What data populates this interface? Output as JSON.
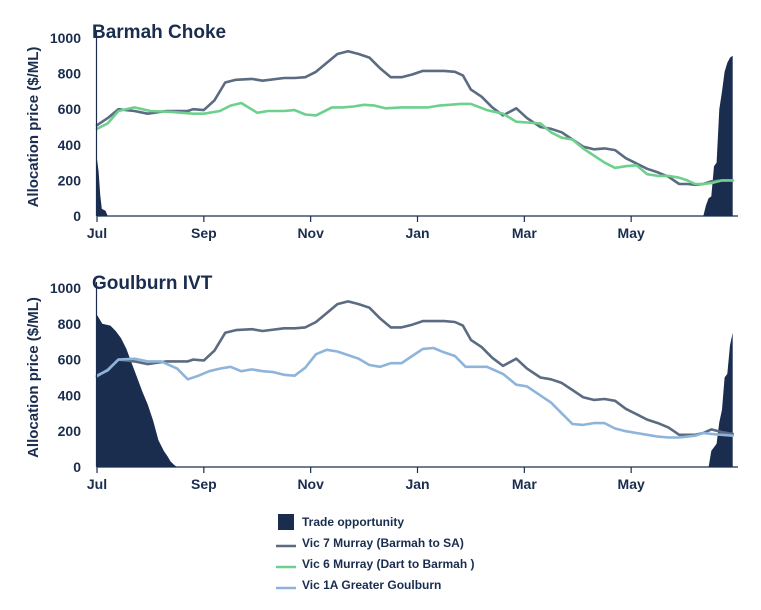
{
  "chart_data": [
    {
      "type": "line",
      "title": "Barmah Choke",
      "ylabel": "Allocation price ($/ML)",
      "xlabel": "",
      "ylim": [
        0,
        1000
      ],
      "yticks": [
        0,
        200,
        400,
        600,
        800,
        1000
      ],
      "xlim": [
        0,
        12
      ],
      "xticks": [
        {
          "label": "Jul",
          "x": 0
        },
        {
          "label": "Sep",
          "x": 2
        },
        {
          "label": "Nov",
          "x": 4
        },
        {
          "label": "Jan",
          "x": 6
        },
        {
          "label": "Mar",
          "x": 8
        },
        {
          "label": "May",
          "x": 10
        }
      ],
      "grid": false,
      "trade_opportunity": [
        {
          "x": 0.0,
          "y": 320
        },
        {
          "x": 0.03,
          "y": 250
        },
        {
          "x": 0.06,
          "y": 120
        },
        {
          "x": 0.09,
          "y": 40
        },
        {
          "x": 0.16,
          "y": 30
        },
        {
          "x": 0.2,
          "y": 0
        },
        {
          "x": 11.35,
          "y": 0
        },
        {
          "x": 11.4,
          "y": 60
        },
        {
          "x": 11.45,
          "y": 100
        },
        {
          "x": 11.5,
          "y": 110
        },
        {
          "x": 11.55,
          "y": 280
        },
        {
          "x": 11.6,
          "y": 300
        },
        {
          "x": 11.65,
          "y": 600
        },
        {
          "x": 11.7,
          "y": 700
        },
        {
          "x": 11.75,
          "y": 810
        },
        {
          "x": 11.8,
          "y": 860
        },
        {
          "x": 11.85,
          "y": 890
        },
        {
          "x": 11.9,
          "y": 900
        }
      ],
      "series": [
        {
          "name": "Vic 7 Murray (Barmah to SA)",
          "color": "#5a6b82",
          "x": [
            0,
            0.2,
            0.4,
            0.7,
            0.95,
            1.3,
            1.7,
            1.8,
            2.0,
            2.2,
            2.4,
            2.6,
            2.9,
            3.1,
            3.5,
            3.7,
            3.9,
            4.1,
            4.3,
            4.5,
            4.7,
            4.9,
            5.1,
            5.3,
            5.5,
            5.7,
            5.9,
            6.1,
            6.3,
            6.5,
            6.7,
            6.85,
            7.0,
            7.2,
            7.4,
            7.6,
            7.85,
            8.05,
            8.3,
            8.5,
            8.7,
            8.9,
            9.1,
            9.3,
            9.5,
            9.7,
            9.9,
            10.1,
            10.3,
            10.5,
            10.7,
            10.9,
            11.05,
            11.2,
            11.35,
            11.5,
            11.7,
            11.9
          ],
          "y": [
            510,
            550,
            600,
            590,
            575,
            590,
            590,
            600,
            595,
            650,
            750,
            765,
            770,
            760,
            775,
            775,
            780,
            810,
            860,
            910,
            925,
            910,
            890,
            830,
            780,
            780,
            795,
            815,
            815,
            815,
            810,
            790,
            710,
            670,
            610,
            565,
            605,
            550,
            500,
            490,
            470,
            430,
            390,
            375,
            380,
            370,
            325,
            295,
            265,
            245,
            220,
            180,
            180,
            175,
            180,
            195,
            200,
            200
          ]
        },
        {
          "name": "Vic 6 Murray (Dart to Barmah )",
          "color": "#6dd08c",
          "x": [
            0,
            0.2,
            0.4,
            0.7,
            1.0,
            1.4,
            1.8,
            2.0,
            2.3,
            2.5,
            2.7,
            3.0,
            3.2,
            3.5,
            3.7,
            3.9,
            4.1,
            4.4,
            4.6,
            4.8,
            5.0,
            5.2,
            5.4,
            5.7,
            6.0,
            6.2,
            6.4,
            6.6,
            6.8,
            7.0,
            7.3,
            7.6,
            7.85,
            8.05,
            8.3,
            8.5,
            8.7,
            8.9,
            9.1,
            9.3,
            9.5,
            9.7,
            9.9,
            10.1,
            10.3,
            10.5,
            10.7,
            10.9,
            11.05,
            11.2,
            11.35,
            11.5,
            11.7,
            11.9
          ],
          "y": [
            490,
            520,
            590,
            610,
            590,
            585,
            575,
            575,
            590,
            620,
            635,
            580,
            590,
            590,
            595,
            570,
            565,
            610,
            610,
            615,
            625,
            620,
            605,
            610,
            610,
            610,
            620,
            625,
            630,
            630,
            595,
            575,
            530,
            525,
            520,
            470,
            440,
            430,
            380,
            340,
            300,
            270,
            280,
            285,
            235,
            225,
            225,
            215,
            200,
            180,
            180,
            185,
            200,
            200
          ]
        }
      ]
    },
    {
      "type": "line",
      "title": "Goulburn IVT",
      "ylabel": "Allocation price ($/ML)",
      "xlabel": "",
      "ylim": [
        0,
        1000
      ],
      "yticks": [
        0,
        200,
        400,
        600,
        800,
        1000
      ],
      "xlim": [
        0,
        12
      ],
      "xticks": [
        {
          "label": "Jul",
          "x": 0
        },
        {
          "label": "Sep",
          "x": 2
        },
        {
          "label": "Nov",
          "x": 4
        },
        {
          "label": "Jan",
          "x": 6
        },
        {
          "label": "Mar",
          "x": 8
        },
        {
          "label": "May",
          "x": 10
        }
      ],
      "grid": false,
      "trade_opportunity": [
        {
          "x": 0.0,
          "y": 850
        },
        {
          "x": 0.1,
          "y": 800
        },
        {
          "x": 0.25,
          "y": 790
        },
        {
          "x": 0.35,
          "y": 760
        },
        {
          "x": 0.45,
          "y": 720
        },
        {
          "x": 0.55,
          "y": 660
        },
        {
          "x": 0.65,
          "y": 580
        },
        {
          "x": 0.75,
          "y": 500
        },
        {
          "x": 0.85,
          "y": 420
        },
        {
          "x": 0.95,
          "y": 350
        },
        {
          "x": 1.05,
          "y": 260
        },
        {
          "x": 1.15,
          "y": 150
        },
        {
          "x": 1.25,
          "y": 90
        },
        {
          "x": 1.32,
          "y": 60
        },
        {
          "x": 1.38,
          "y": 30
        },
        {
          "x": 1.45,
          "y": 10
        },
        {
          "x": 1.5,
          "y": 0
        },
        {
          "x": 11.45,
          "y": 0
        },
        {
          "x": 11.5,
          "y": 90
        },
        {
          "x": 11.55,
          "y": 110
        },
        {
          "x": 11.6,
          "y": 130
        },
        {
          "x": 11.65,
          "y": 250
        },
        {
          "x": 11.7,
          "y": 320
        },
        {
          "x": 11.75,
          "y": 500
        },
        {
          "x": 11.8,
          "y": 520
        },
        {
          "x": 11.85,
          "y": 680
        },
        {
          "x": 11.9,
          "y": 750
        }
      ],
      "series": [
        {
          "name": "Vic 7 Murray (Barmah to SA)",
          "color": "#5a6b82",
          "x": [
            0,
            0.2,
            0.4,
            0.7,
            0.95,
            1.3,
            1.7,
            1.8,
            2.0,
            2.2,
            2.4,
            2.6,
            2.9,
            3.1,
            3.5,
            3.7,
            3.9,
            4.1,
            4.3,
            4.5,
            4.7,
            4.9,
            5.1,
            5.3,
            5.5,
            5.7,
            5.9,
            6.1,
            6.3,
            6.5,
            6.7,
            6.85,
            7.0,
            7.2,
            7.4,
            7.6,
            7.85,
            8.05,
            8.3,
            8.5,
            8.7,
            8.9,
            9.1,
            9.3,
            9.5,
            9.7,
            9.9,
            10.1,
            10.3,
            10.5,
            10.7,
            10.9,
            11.05,
            11.2,
            11.35,
            11.5,
            11.7,
            11.9
          ],
          "y": [
            505,
            545,
            600,
            590,
            575,
            590,
            590,
            600,
            595,
            650,
            750,
            765,
            770,
            760,
            775,
            775,
            780,
            810,
            860,
            910,
            925,
            910,
            890,
            830,
            780,
            780,
            795,
            815,
            815,
            815,
            810,
            790,
            710,
            670,
            610,
            565,
            605,
            550,
            500,
            490,
            470,
            430,
            390,
            375,
            380,
            370,
            325,
            295,
            265,
            245,
            220,
            180,
            180,
            180,
            190,
            210,
            195,
            185
          ]
        },
        {
          "name": "Vic 1A Greater Goulburn",
          "color": "#8fb4dc",
          "x": [
            0,
            0.2,
            0.4,
            0.7,
            0.95,
            1.2,
            1.5,
            1.7,
            1.9,
            2.1,
            2.3,
            2.5,
            2.7,
            2.9,
            3.1,
            3.3,
            3.5,
            3.7,
            3.9,
            4.1,
            4.3,
            4.5,
            4.7,
            4.9,
            5.1,
            5.3,
            5.5,
            5.7,
            5.9,
            6.1,
            6.3,
            6.5,
            6.7,
            6.9,
            7.1,
            7.3,
            7.6,
            7.85,
            8.05,
            8.3,
            8.5,
            8.7,
            8.9,
            9.1,
            9.3,
            9.5,
            9.7,
            9.9,
            10.1,
            10.3,
            10.5,
            10.7,
            10.9,
            11.05,
            11.2,
            11.35,
            11.5,
            11.7,
            11.9
          ],
          "y": [
            510,
            540,
            600,
            605,
            590,
            590,
            550,
            490,
            510,
            535,
            550,
            560,
            535,
            545,
            535,
            530,
            515,
            510,
            555,
            630,
            655,
            645,
            625,
            605,
            570,
            560,
            580,
            580,
            620,
            660,
            665,
            640,
            620,
            560,
            560,
            560,
            520,
            460,
            450,
            400,
            360,
            300,
            240,
            235,
            245,
            245,
            215,
            200,
            190,
            180,
            170,
            165,
            165,
            170,
            175,
            190,
            185,
            180,
            175
          ]
        }
      ]
    }
  ],
  "legend": [
    {
      "label": "Trade opportunity",
      "kind": "box",
      "color": "#1a2d4f"
    },
    {
      "label": "Vic 7 Murray  (Barmah to SA)",
      "kind": "line",
      "color": "#5a6b82"
    },
    {
      "label": "Vic 6 Murray  (Dart to Barmah )",
      "kind": "line",
      "color": "#6dd08c"
    },
    {
      "label": "Vic 1A Greater Goulburn",
      "kind": "line",
      "color": "#8fb4dc"
    }
  ],
  "colors": {
    "axis": "#1a2d4f",
    "text": "#1a2d4f",
    "trade_fill": "#1a2d4f"
  }
}
